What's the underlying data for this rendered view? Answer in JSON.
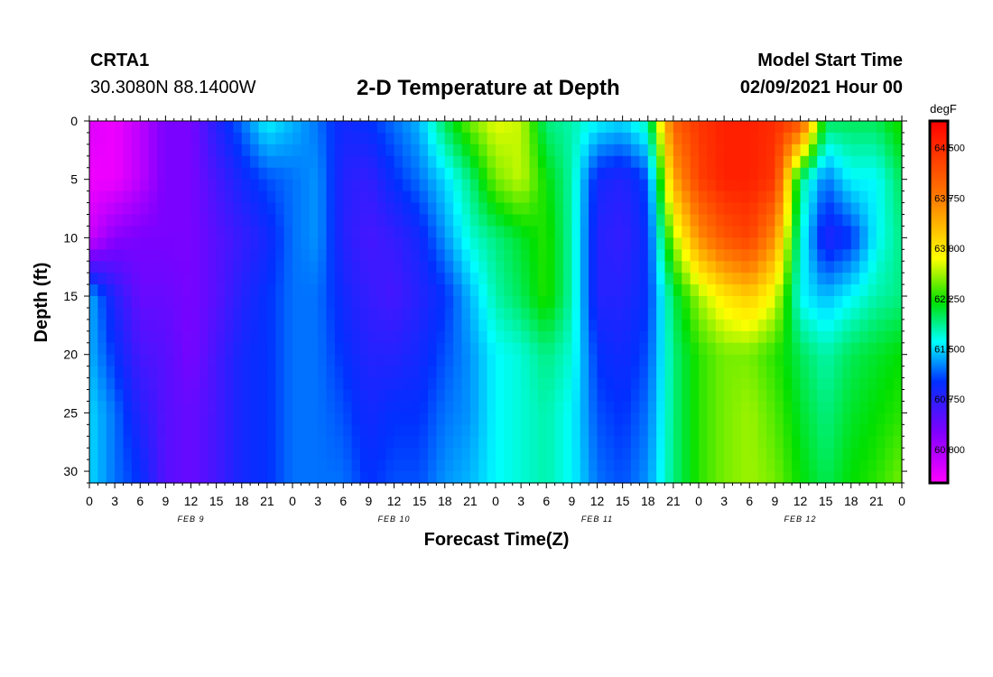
{
  "header": {
    "station": "CRTA1",
    "coordinates": "30.3080N 88.1400W",
    "title": "2-D Temperature at Depth",
    "model_start_label": "Model Start Time",
    "model_start_value": "02/09/2021 Hour 00"
  },
  "chart_data": {
    "type": "heatmap",
    "title": "2-D Temperature at Depth",
    "xlabel": "Forecast Time(Z)",
    "ylabel": "Depth (ft)",
    "xlim": [
      0,
      96
    ],
    "ylim": [
      0,
      31
    ],
    "y_inverted": true,
    "x_tick_values": [
      0,
      3,
      6,
      9,
      12,
      15,
      18,
      21,
      24,
      27,
      30,
      33,
      36,
      39,
      42,
      45,
      48,
      51,
      54,
      57,
      60,
      63,
      66,
      69,
      72,
      75,
      78,
      81,
      84,
      87,
      90,
      93,
      96
    ],
    "x_tick_labels": [
      "0",
      "3",
      "6",
      "9",
      "12",
      "15",
      "18",
      "21",
      "0",
      "3",
      "6",
      "9",
      "12",
      "15",
      "18",
      "21",
      "0",
      "3",
      "6",
      "9",
      "12",
      "15",
      "18",
      "21",
      "0",
      "3",
      "6",
      "9",
      "12",
      "15",
      "18",
      "21",
      "0"
    ],
    "y_ticks": [
      0,
      5,
      10,
      15,
      20,
      25,
      30
    ],
    "y_tick_labels": [
      "0",
      "5",
      "10",
      "15",
      "20",
      "25",
      "30"
    ],
    "date_labels": [
      {
        "label": "FEB 9",
        "x": 12
      },
      {
        "label": "FEB 10",
        "x": 36
      },
      {
        "label": "FEB 11",
        "x": 60
      },
      {
        "label": "FEB 12",
        "x": 84
      }
    ],
    "colorbar": {
      "unit": "degF",
      "min": 59.5,
      "max": 64.9,
      "ticks": [
        60.0,
        60.75,
        61.5,
        62.25,
        63.0,
        63.75,
        64.5
      ],
      "tick_labels": [
        "60.000",
        "60.750",
        "61.500",
        "62.250",
        "63.000",
        "63.750",
        "64.500"
      ]
    },
    "time_hours": [
      0,
      3,
      6,
      9,
      12,
      15,
      18,
      21,
      24,
      27,
      30,
      33,
      36,
      39,
      42,
      45,
      48,
      51,
      54,
      57,
      60,
      63,
      66,
      69,
      72,
      75,
      78,
      81,
      84,
      87,
      90,
      93,
      96
    ],
    "depth_ft": [
      0,
      5,
      10,
      15,
      20,
      25,
      31
    ],
    "temperature_degF": [
      [
        59.7,
        59.6,
        59.9,
        60.3,
        60.3,
        60.8,
        61.2,
        61.6,
        61.4,
        61.2,
        60.9,
        61.0,
        61.2,
        61.4,
        62.0,
        62.5,
        62.8,
        62.7,
        61.9,
        61.8,
        61.6,
        61.5,
        61.8,
        64.0,
        64.4,
        64.6,
        64.6,
        64.5,
        64.2,
        62.0,
        62.0,
        62.0,
        62.3
      ],
      [
        59.6,
        59.6,
        59.9,
        60.3,
        60.3,
        60.6,
        60.9,
        61.1,
        61.2,
        61.3,
        60.8,
        60.7,
        61.0,
        61.2,
        61.5,
        61.9,
        62.5,
        62.7,
        62.2,
        61.8,
        60.9,
        60.8,
        61.1,
        63.4,
        64.3,
        64.6,
        64.6,
        64.4,
        61.9,
        61.2,
        61.6,
        61.6,
        62.0
      ],
      [
        59.8,
        60.2,
        60.3,
        60.3,
        60.3,
        60.5,
        60.7,
        60.9,
        61.2,
        61.3,
        60.8,
        60.6,
        60.7,
        60.9,
        61.3,
        61.7,
        61.9,
        62.1,
        62.3,
        61.8,
        60.8,
        60.7,
        61.0,
        62.6,
        63.6,
        64.1,
        64.3,
        63.6,
        61.7,
        60.8,
        61.0,
        61.6,
        61.9
      ],
      [
        61.4,
        60.8,
        60.4,
        60.4,
        60.3,
        60.5,
        60.8,
        61.0,
        61.2,
        61.2,
        60.9,
        60.7,
        60.6,
        60.8,
        61.0,
        61.4,
        61.8,
        62.0,
        62.3,
        61.8,
        60.8,
        60.8,
        61.0,
        62.0,
        62.6,
        63.0,
        63.2,
        62.8,
        61.6,
        61.4,
        61.6,
        61.8,
        61.9
      ],
      [
        61.4,
        61.0,
        60.6,
        60.5,
        60.3,
        60.6,
        60.9,
        61.0,
        61.2,
        61.2,
        61.0,
        60.8,
        60.8,
        60.9,
        61.1,
        61.3,
        61.6,
        61.7,
        61.9,
        61.7,
        61.0,
        60.9,
        61.1,
        61.9,
        62.3,
        62.5,
        62.5,
        62.3,
        62.0,
        61.8,
        62.0,
        62.1,
        62.2
      ],
      [
        61.5,
        61.2,
        60.8,
        60.5,
        60.4,
        60.6,
        60.9,
        61.0,
        61.2,
        61.2,
        61.1,
        60.9,
        61.0,
        61.0,
        61.2,
        61.3,
        61.6,
        61.7,
        61.8,
        61.6,
        61.1,
        61.0,
        61.2,
        61.9,
        62.3,
        62.5,
        62.6,
        62.4,
        62.1,
        61.9,
        62.1,
        62.2,
        62.3
      ],
      [
        61.5,
        61.2,
        61.0,
        60.5,
        60.4,
        60.6,
        60.9,
        61.0,
        61.2,
        61.2,
        61.2,
        61.0,
        61.1,
        61.1,
        61.3,
        61.4,
        61.6,
        61.7,
        61.8,
        61.6,
        61.2,
        61.1,
        61.3,
        61.9,
        62.3,
        62.5,
        62.6,
        62.5,
        62.2,
        62.0,
        62.2,
        62.3,
        62.5
      ]
    ]
  }
}
